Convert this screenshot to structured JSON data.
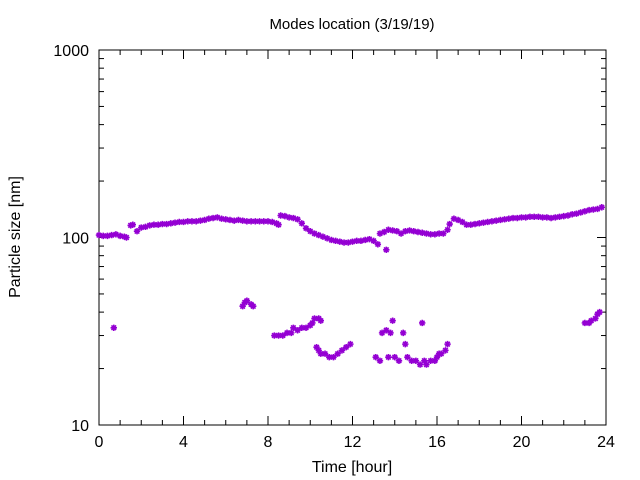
{
  "chart_data": {
    "type": "scatter",
    "title": "Modes location (3/19/19)",
    "xlabel": "Time [hour]",
    "ylabel": "Particle size [nm]",
    "xlim": [
      0,
      24
    ],
    "ylim": [
      10,
      1000
    ],
    "yscale": "log",
    "xticks": [
      0,
      4,
      8,
      12,
      16,
      20,
      24
    ],
    "yticks": [
      10,
      100,
      1000
    ],
    "x_tick_labels": [
      "0",
      "4",
      "8",
      "12",
      "16",
      "20",
      "24"
    ],
    "y_tick_labels": [
      "10",
      "100",
      "1000"
    ],
    "grid": false,
    "marker_color": "#9400d3",
    "series": [
      {
        "points": [
          [
            0.0,
            103
          ],
          [
            0.2,
            102
          ],
          [
            0.4,
            102
          ],
          [
            0.6,
            103
          ],
          [
            0.8,
            104
          ],
          [
            1.0,
            102
          ],
          [
            1.2,
            101
          ],
          [
            1.3,
            100
          ],
          [
            1.5,
            116
          ],
          [
            1.6,
            117
          ],
          [
            1.8,
            108
          ],
          [
            2.0,
            113
          ],
          [
            2.2,
            114
          ],
          [
            2.4,
            116
          ],
          [
            2.6,
            117
          ],
          [
            2.8,
            117
          ],
          [
            3.0,
            118
          ],
          [
            3.2,
            118
          ],
          [
            3.4,
            119
          ],
          [
            3.6,
            120
          ],
          [
            3.8,
            121
          ],
          [
            4.0,
            121
          ],
          [
            4.2,
            122
          ],
          [
            4.4,
            122
          ],
          [
            4.6,
            122
          ],
          [
            4.8,
            123
          ],
          [
            5.0,
            124
          ],
          [
            5.2,
            126
          ],
          [
            5.4,
            127
          ],
          [
            5.6,
            128
          ],
          [
            5.8,
            126
          ],
          [
            6.0,
            125
          ],
          [
            6.2,
            124
          ],
          [
            6.4,
            123
          ],
          [
            6.6,
            124
          ],
          [
            6.8,
            123
          ],
          [
            7.0,
            122
          ],
          [
            7.2,
            122
          ],
          [
            7.4,
            122
          ],
          [
            7.6,
            122
          ],
          [
            7.8,
            122
          ],
          [
            8.0,
            122
          ],
          [
            8.2,
            121
          ],
          [
            8.4,
            119
          ],
          [
            8.5,
            117
          ],
          [
            8.6,
            131
          ],
          [
            8.8,
            130
          ],
          [
            9.0,
            128
          ],
          [
            9.2,
            127
          ],
          [
            9.4,
            125
          ],
          [
            9.6,
            119
          ],
          [
            9.8,
            112
          ],
          [
            10.0,
            108
          ],
          [
            10.2,
            105
          ],
          [
            10.4,
            103
          ],
          [
            10.6,
            101
          ],
          [
            10.8,
            99
          ],
          [
            11.0,
            97
          ],
          [
            11.2,
            96
          ],
          [
            11.4,
            95
          ],
          [
            11.6,
            94
          ],
          [
            11.8,
            94
          ],
          [
            12.0,
            95
          ],
          [
            12.2,
            96
          ],
          [
            12.4,
            96
          ],
          [
            12.6,
            97
          ],
          [
            12.8,
            98
          ],
          [
            13.0,
            96
          ],
          [
            13.2,
            92
          ],
          [
            13.3,
            105
          ],
          [
            13.5,
            107
          ],
          [
            13.7,
            110
          ],
          [
            13.9,
            109
          ],
          [
            14.1,
            108
          ],
          [
            14.3,
            105
          ],
          [
            14.5,
            108
          ],
          [
            14.7,
            109
          ],
          [
            14.9,
            108
          ],
          [
            15.1,
            107
          ],
          [
            15.3,
            106
          ],
          [
            15.5,
            105
          ],
          [
            15.7,
            104
          ],
          [
            15.9,
            104
          ],
          [
            16.1,
            105
          ],
          [
            16.3,
            105
          ],
          [
            16.5,
            110
          ],
          [
            16.6,
            118
          ],
          [
            16.8,
            126
          ],
          [
            17.0,
            124
          ],
          [
            17.2,
            121
          ],
          [
            17.4,
            117
          ],
          [
            17.6,
            117
          ],
          [
            17.8,
            118
          ],
          [
            18.0,
            119
          ],
          [
            18.2,
            120
          ],
          [
            18.4,
            121
          ],
          [
            18.6,
            122
          ],
          [
            18.8,
            123
          ],
          [
            19.0,
            124
          ],
          [
            19.2,
            125
          ],
          [
            19.4,
            126
          ],
          [
            19.6,
            127
          ],
          [
            19.8,
            127
          ],
          [
            20.0,
            128
          ],
          [
            20.2,
            128
          ],
          [
            20.4,
            129
          ],
          [
            20.6,
            129
          ],
          [
            20.8,
            129
          ],
          [
            21.0,
            128
          ],
          [
            21.2,
            128
          ],
          [
            21.4,
            127
          ],
          [
            21.6,
            128
          ],
          [
            21.8,
            129
          ],
          [
            22.0,
            130
          ],
          [
            22.2,
            131
          ],
          [
            22.4,
            133
          ],
          [
            22.6,
            134
          ],
          [
            22.8,
            136
          ],
          [
            23.0,
            138
          ],
          [
            23.2,
            140
          ],
          [
            23.4,
            141
          ],
          [
            23.6,
            142
          ],
          [
            23.8,
            145
          ],
          [
            13.6,
            86
          ],
          [
            0.7,
            33
          ],
          [
            6.8,
            43
          ],
          [
            6.9,
            45
          ],
          [
            7.0,
            46
          ],
          [
            7.2,
            44
          ],
          [
            7.3,
            43
          ],
          [
            8.3,
            30
          ],
          [
            8.5,
            30
          ],
          [
            8.7,
            30
          ],
          [
            8.9,
            31
          ],
          [
            9.1,
            31
          ],
          [
            9.2,
            33
          ],
          [
            9.4,
            32
          ],
          [
            9.6,
            33
          ],
          [
            9.8,
            33
          ],
          [
            10.0,
            34
          ],
          [
            10.1,
            35
          ],
          [
            10.2,
            37
          ],
          [
            10.4,
            37
          ],
          [
            10.5,
            36
          ],
          [
            10.3,
            26
          ],
          [
            10.4,
            25
          ],
          [
            10.5,
            24
          ],
          [
            10.7,
            24
          ],
          [
            10.9,
            23
          ],
          [
            11.1,
            23
          ],
          [
            11.3,
            24
          ],
          [
            11.5,
            25
          ],
          [
            11.7,
            26
          ],
          [
            11.9,
            27
          ],
          [
            13.1,
            23
          ],
          [
            13.3,
            22
          ],
          [
            13.4,
            31
          ],
          [
            13.6,
            32
          ],
          [
            13.7,
            23
          ],
          [
            13.8,
            31
          ],
          [
            13.9,
            36
          ],
          [
            14.0,
            23
          ],
          [
            14.2,
            22
          ],
          [
            14.4,
            31
          ],
          [
            14.5,
            27
          ],
          [
            14.6,
            23
          ],
          [
            14.8,
            22
          ],
          [
            15.0,
            22
          ],
          [
            15.2,
            21
          ],
          [
            15.3,
            35
          ],
          [
            15.4,
            22
          ],
          [
            15.5,
            21
          ],
          [
            15.7,
            22
          ],
          [
            15.9,
            22
          ],
          [
            16.0,
            23
          ],
          [
            16.1,
            24
          ],
          [
            16.2,
            24
          ],
          [
            16.4,
            25
          ],
          [
            16.5,
            27
          ],
          [
            23.0,
            35
          ],
          [
            23.2,
            35
          ],
          [
            23.3,
            36
          ],
          [
            23.5,
            37
          ],
          [
            23.6,
            39
          ],
          [
            23.7,
            40
          ]
        ]
      }
    ]
  }
}
